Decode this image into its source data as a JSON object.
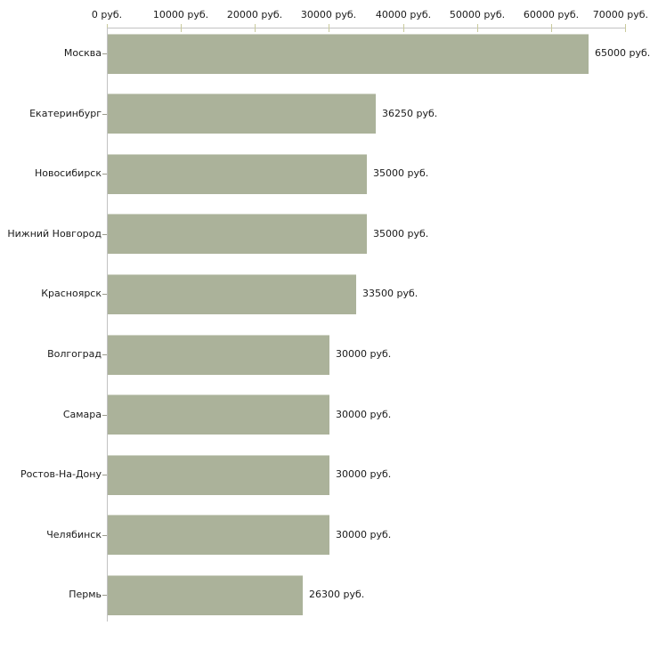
{
  "chart_data": {
    "type": "bar",
    "orientation": "horizontal",
    "title": "",
    "xlabel": "",
    "ylabel": "",
    "unit": "руб.",
    "xlim": [
      0,
      70000
    ],
    "grid": false,
    "legend": false,
    "categories": [
      "Москва",
      "Екатеринбург",
      "Новосибирск",
      "Нижний Новгород",
      "Красноярск",
      "Волгоград",
      "Самара",
      "Ростов-На-Дону",
      "Челябинск",
      "Пермь"
    ],
    "values": [
      65000,
      36250,
      35000,
      35000,
      33500,
      30000,
      30000,
      30000,
      30000,
      26300
    ],
    "value_labels": [
      "65000 руб.",
      "36250 руб.",
      "35000 руб.",
      "35000 руб.",
      "33500 руб.",
      "30000 руб.",
      "30000 руб.",
      "30000 руб.",
      "30000 руб.",
      "26300 руб."
    ],
    "x_ticks": [
      {
        "value": 0,
        "label": "0 руб."
      },
      {
        "value": 10000,
        "label": "10000 руб."
      },
      {
        "value": 20000,
        "label": "20000 руб."
      },
      {
        "value": 30000,
        "label": "30000 руб."
      },
      {
        "value": 40000,
        "label": "40000 руб."
      },
      {
        "value": 50000,
        "label": "50000 руб."
      },
      {
        "value": 60000,
        "label": "60000 руб."
      },
      {
        "value": 70000,
        "label": "70000 руб."
      }
    ],
    "colors": {
      "bar": "#abb29a",
      "axis_line": "#c2c2c2",
      "tick_mark": "#c9ca9c",
      "row_tick": "#9a9a8c",
      "text": "#1a1a1a",
      "background": "#ffffff"
    }
  }
}
